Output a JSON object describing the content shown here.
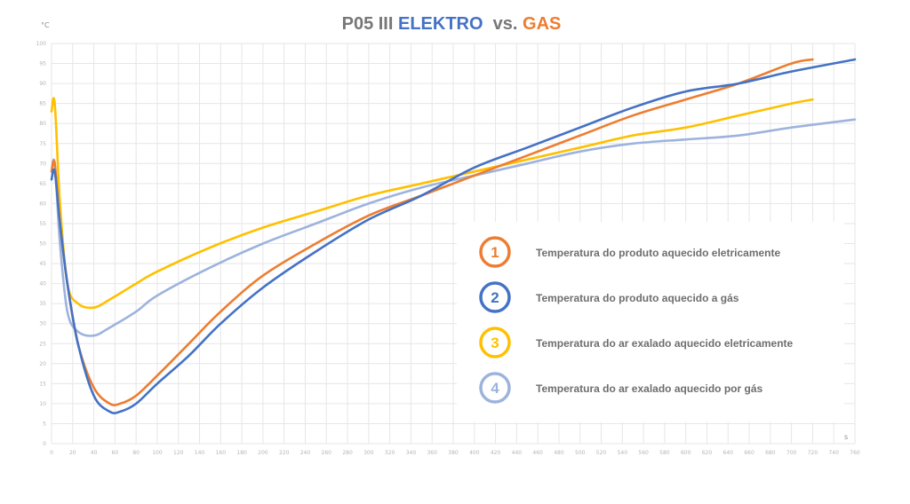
{
  "chart_data": {
    "type": "line",
    "title_parts": [
      {
        "text": "P05 III ",
        "color": "#777777"
      },
      {
        "text": "ELEKTRO",
        "color": "#4472c4"
      },
      {
        "text": "  vs. ",
        "color": "#777777"
      },
      {
        "text": "GAS",
        "color": "#ed7d31"
      }
    ],
    "y_unit": "°C",
    "x_unit": "s",
    "xlim": [
      0,
      760
    ],
    "ylim": [
      0,
      100
    ],
    "x_ticks": [
      0,
      20,
      40,
      60,
      80,
      100,
      120,
      140,
      160,
      180,
      200,
      220,
      240,
      260,
      280,
      300,
      320,
      340,
      360,
      380,
      400,
      420,
      440,
      460,
      480,
      500,
      520,
      540,
      560,
      580,
      600,
      620,
      640,
      660,
      680,
      700,
      720,
      740,
      760
    ],
    "y_ticks": [
      0,
      5,
      10,
      15,
      20,
      25,
      30,
      35,
      40,
      45,
      50,
      55,
      60,
      65,
      70,
      75,
      80,
      85,
      90,
      95,
      100
    ],
    "grid": true,
    "series": [
      {
        "id": "1",
        "name": "Temperatura do produto aquecido eletricamente",
        "color": "#ed7d31",
        "x": [
          0,
          3,
          8,
          15,
          25,
          40,
          55,
          65,
          80,
          100,
          130,
          160,
          200,
          250,
          300,
          350,
          400,
          450,
          500,
          550,
          600,
          650,
          700,
          720
        ],
        "y": [
          68,
          70,
          55,
          40,
          25,
          14,
          10,
          10,
          12,
          17,
          25,
          33,
          42,
          50,
          57,
          62,
          67,
          72,
          77,
          82,
          86,
          90,
          95,
          96
        ]
      },
      {
        "id": "2",
        "name": "Temperatura do produto aquecido a gás",
        "color": "#4472c4",
        "x": [
          0,
          3,
          8,
          15,
          25,
          40,
          55,
          65,
          80,
          100,
          130,
          160,
          200,
          250,
          300,
          350,
          400,
          450,
          500,
          550,
          600,
          650,
          700,
          760
        ],
        "y": [
          66,
          68,
          55,
          40,
          25,
          12,
          8,
          8,
          10,
          15,
          22,
          30,
          39,
          48,
          56,
          62,
          69,
          74,
          79,
          84,
          88,
          90,
          93,
          96
        ]
      },
      {
        "id": "3",
        "name": "Temperatura do ar exalado aquecido eletricamente",
        "color": "#ffc000",
        "x": [
          0,
          3,
          8,
          15,
          25,
          40,
          55,
          80,
          100,
          150,
          200,
          250,
          300,
          350,
          400,
          450,
          500,
          550,
          600,
          650,
          700,
          720
        ],
        "y": [
          83,
          85,
          60,
          40,
          35,
          34,
          36,
          40,
          43,
          49,
          54,
          58,
          62,
          65,
          68,
          71,
          74,
          77,
          79,
          82,
          85,
          86
        ]
      },
      {
        "id": "4",
        "name": "Temperatura do ar exalado aquecido por gás",
        "color": "#9db3dd",
        "x": [
          0,
          3,
          8,
          15,
          25,
          40,
          55,
          80,
          100,
          150,
          200,
          250,
          300,
          350,
          400,
          450,
          500,
          550,
          600,
          650,
          700,
          760
        ],
        "y": [
          68,
          70,
          50,
          33,
          28,
          27,
          29,
          33,
          37,
          44,
          50,
          55,
          60,
          64,
          67,
          70,
          73,
          75,
          76,
          77,
          79,
          81
        ]
      }
    ],
    "legend_position": "right-middle"
  }
}
